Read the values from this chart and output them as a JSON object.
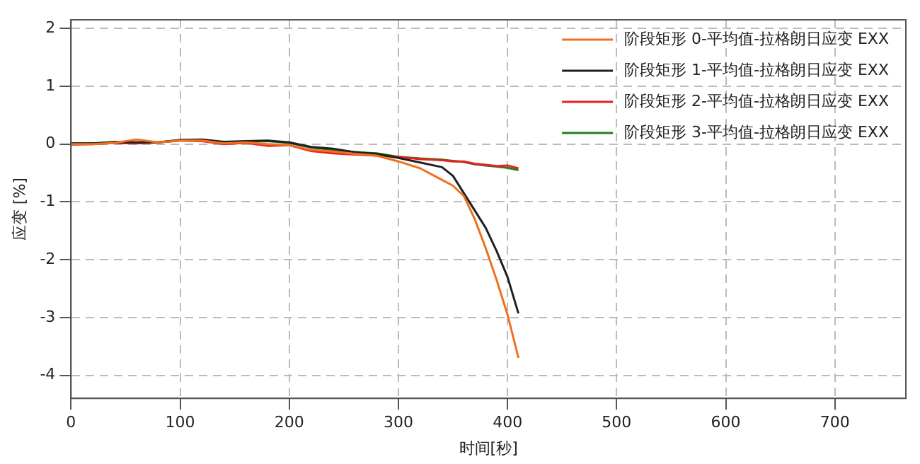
{
  "chart_data": {
    "type": "line",
    "xlabel": "时间[秒]",
    "ylabel": "应变 [%]",
    "xlim": [
      0,
      765
    ],
    "ylim": [
      -4.4,
      2.15
    ],
    "xticks": [
      0,
      100,
      200,
      300,
      400,
      500,
      600,
      700
    ],
    "yticks": [
      -4,
      -3,
      -2,
      -1,
      0,
      1,
      2
    ],
    "grid": true,
    "legend": "top right",
    "marker": "none",
    "line_style": "solid",
    "x": [
      0,
      20,
      40,
      60,
      80,
      100,
      120,
      140,
      160,
      180,
      200,
      220,
      240,
      260,
      280,
      300,
      320,
      340,
      350,
      360,
      370,
      380,
      390,
      400,
      410
    ],
    "series": [
      {
        "name": "阶段矩形 0-平均值-拉格朗日应变 EXX",
        "color": "#f07020",
        "values": [
          0,
          0,
          0.02,
          0.08,
          0.03,
          0.06,
          0.06,
          0.01,
          0.03,
          0,
          -0.02,
          -0.1,
          -0.13,
          -0.17,
          -0.2,
          -0.3,
          -0.42,
          -0.62,
          -0.72,
          -0.9,
          -1.3,
          -1.8,
          -2.35,
          -2.95,
          -3.7
        ]
      },
      {
        "name": "阶段矩形 1-平均值-拉格朗日应变 EXX",
        "color": "#202020",
        "values": [
          0.01,
          0.01,
          0.03,
          0.03,
          0.03,
          0.07,
          0.08,
          0.04,
          0.05,
          0.06,
          0.03,
          -0.05,
          -0.08,
          -0.14,
          -0.17,
          -0.24,
          -0.32,
          -0.4,
          -0.55,
          -0.85,
          -1.15,
          -1.45,
          -1.85,
          -2.3,
          -2.93
        ]
      },
      {
        "name": "阶段矩形 2-平均值-拉格朗日应变 EXX",
        "color": "#e82020",
        "values": [
          -0.01,
          0,
          0.02,
          0.01,
          0.03,
          0.06,
          0.05,
          0,
          0.02,
          -0.03,
          -0.02,
          -0.12,
          -0.16,
          -0.18,
          -0.2,
          -0.22,
          -0.26,
          -0.28,
          -0.3,
          -0.3,
          -0.34,
          -0.36,
          -0.38,
          -0.37,
          -0.42
        ]
      },
      {
        "name": "阶段矩形 3-平均值-拉格朗日应变 EXX",
        "color": "#208020",
        "values": [
          0.01,
          0.01,
          0.04,
          0.03,
          0.03,
          0.07,
          0.07,
          0.03,
          0.04,
          0.05,
          0.02,
          -0.06,
          -0.1,
          -0.14,
          -0.16,
          -0.22,
          -0.25,
          -0.27,
          -0.29,
          -0.31,
          -0.35,
          -0.37,
          -0.39,
          -0.41,
          -0.45
        ]
      }
    ]
  }
}
